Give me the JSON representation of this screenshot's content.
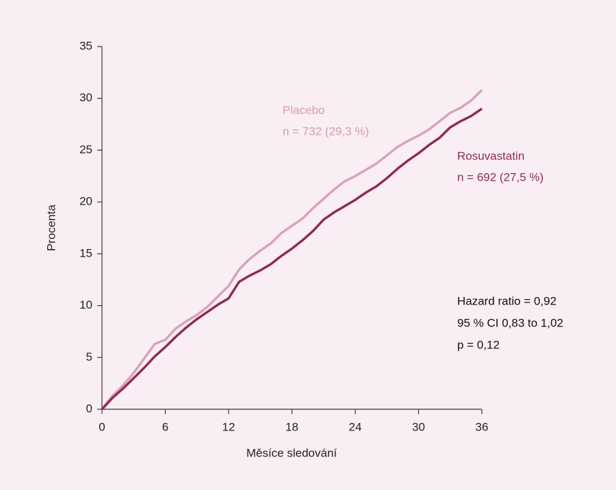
{
  "chart_data": {
    "type": "line",
    "x_label": "Měsíce sledování",
    "y_label": "Procenta",
    "x": [
      0,
      1,
      2,
      3,
      4,
      5,
      6,
      7,
      8,
      9,
      10,
      11,
      12,
      13,
      14,
      15,
      16,
      17,
      18,
      19,
      20,
      21,
      22,
      23,
      24,
      25,
      26,
      27,
      28,
      29,
      30,
      31,
      32,
      33,
      34,
      35,
      36
    ],
    "series": [
      {
        "name": "Placebo",
        "color": "#d9a2b8",
        "values": [
          0,
          1.3,
          2.3,
          3.5,
          4.9,
          6.3,
          6.7,
          7.8,
          8.5,
          9.1,
          9.9,
          10.9,
          11.9,
          13.5,
          14.5,
          15.3,
          16.0,
          17.0,
          17.7,
          18.4,
          19.4,
          20.3,
          21.2,
          22.0,
          22.5,
          23.1,
          23.7,
          24.5,
          25.3,
          25.9,
          26.4,
          27.0,
          27.8,
          28.6,
          29.1,
          29.8,
          30.8
        ]
      },
      {
        "name": "Rosuvastatin",
        "color": "#8e2a5a",
        "values": [
          0,
          1.1,
          2.0,
          3.0,
          4.0,
          5.1,
          6.0,
          7.0,
          7.9,
          8.7,
          9.4,
          10.1,
          10.7,
          12.3,
          12.9,
          13.4,
          14.0,
          14.8,
          15.5,
          16.3,
          17.2,
          18.3,
          19.0,
          19.6,
          20.2,
          20.9,
          21.5,
          22.3,
          23.2,
          24.0,
          24.7,
          25.5,
          26.2,
          27.2,
          27.8,
          28.3,
          29.0
        ]
      }
    ],
    "xlim": [
      0,
      36
    ],
    "xticks": [
      0,
      6,
      12,
      18,
      24,
      30,
      36
    ],
    "ylim": [
      0,
      35
    ],
    "yticks": [
      0,
      5,
      10,
      15,
      20,
      25,
      30,
      35
    ],
    "grid": false,
    "annotations": [
      {
        "lines": [
          "Placebo",
          "n = 732 (29,3 %)"
        ],
        "color": "#d69bb2"
      },
      {
        "lines": [
          "Rosuvastatin",
          "n = 692 (27,5 %)"
        ],
        "color": "#8e2a5a"
      },
      {
        "lines": [
          "Hazard ratio = 0,92",
          "95 % CI 0,83 to 1,02",
          "p = 0,12"
        ],
        "color": "#111111"
      }
    ]
  }
}
